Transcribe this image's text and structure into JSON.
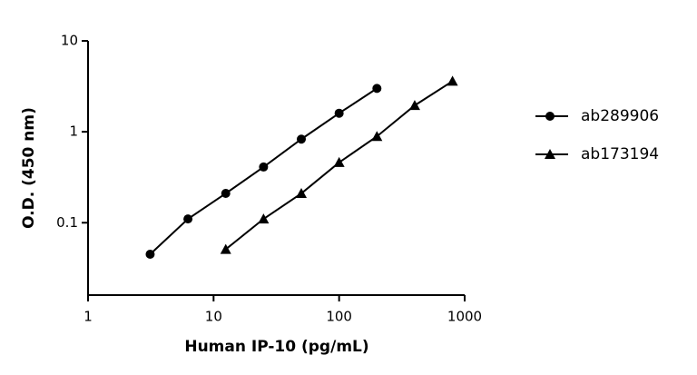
{
  "chart_data": {
    "type": "line",
    "x_label": "Human IP-10 (pg/mL)",
    "y_label": "O.D. (450 nm)",
    "log_x": true,
    "log_y": true,
    "xlim": [
      1,
      1000
    ],
    "xticks": [
      1,
      10,
      100,
      1000
    ],
    "ylim": [
      0.016,
      10
    ],
    "yticks": [
      0.1,
      1,
      10
    ],
    "legend": "right",
    "series": [
      {
        "name": "ab289906",
        "color": "#000000",
        "marker": "circle",
        "x": [
          3.125,
          6.25,
          12.5,
          25,
          50,
          100,
          200
        ],
        "values": [
          0.045,
          0.11,
          0.21,
          0.41,
          0.83,
          1.6,
          3.0
        ]
      },
      {
        "name": "ab173194",
        "color": "#000000",
        "marker": "triangle",
        "x": [
          12.5,
          25,
          50,
          100,
          200,
          400,
          800
        ],
        "values": [
          0.051,
          0.11,
          0.21,
          0.46,
          0.89,
          1.95,
          3.6
        ]
      }
    ]
  }
}
